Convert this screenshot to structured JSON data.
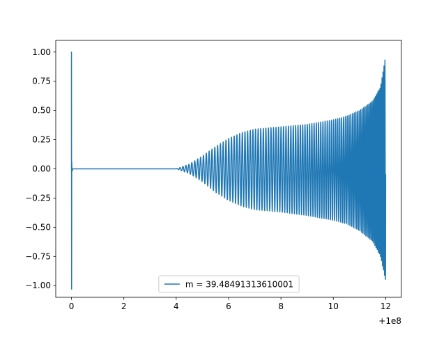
{
  "chart_data": {
    "type": "line",
    "title": "",
    "xlabel": "",
    "ylabel": "",
    "x_offset_label": "+1e8",
    "xlim": [
      -0.6,
      12.6
    ],
    "ylim": [
      -1.1,
      1.1
    ],
    "xticks": [
      0,
      2,
      4,
      6,
      8,
      10,
      12
    ],
    "xtick_labels": [
      "0",
      "2",
      "4",
      "6",
      "8",
      "10",
      "12"
    ],
    "yticks": [
      -1.0,
      -0.75,
      -0.5,
      -0.25,
      0.0,
      0.25,
      0.5,
      0.75,
      1.0
    ],
    "ytick_labels": [
      "−1.00",
      "−0.75",
      "−0.50",
      "−0.25",
      "0.00",
      "0.25",
      "0.50",
      "0.75",
      "1.00"
    ],
    "grid": false,
    "legend_position": "lower center",
    "series": [
      {
        "name": "m = 39.48491313610001",
        "color": "#1f77b4",
        "initial_spike": {
          "x": 0.0,
          "max": 1.0,
          "min": -1.03
        },
        "flat_segment": {
          "x_start": 0.05,
          "x_end": 4.0,
          "y": 0.0
        },
        "envelope": {
          "x": [
            4.0,
            4.5,
            5.0,
            5.5,
            6.0,
            6.5,
            7.0,
            8.0,
            9.0,
            9.5,
            10.0,
            10.5,
            11.0,
            11.5,
            11.8,
            12.0
          ],
          "upper": [
            0.0,
            0.04,
            0.11,
            0.19,
            0.26,
            0.31,
            0.34,
            0.36,
            0.38,
            0.4,
            0.42,
            0.45,
            0.5,
            0.58,
            0.7,
            0.97
          ],
          "lower": [
            0.0,
            -0.04,
            -0.11,
            -0.2,
            -0.27,
            -0.32,
            -0.35,
            -0.37,
            -0.4,
            -0.42,
            -0.44,
            -0.47,
            -0.53,
            -0.62,
            -0.75,
            -0.96
          ]
        },
        "oscillation_periods": {
          "x": [
            4.0,
            6.0,
            8.0,
            10.0,
            11.0,
            12.0
          ],
          "period": [
            0.115,
            0.105,
            0.095,
            0.08,
            0.06,
            0.035
          ]
        }
      }
    ]
  }
}
